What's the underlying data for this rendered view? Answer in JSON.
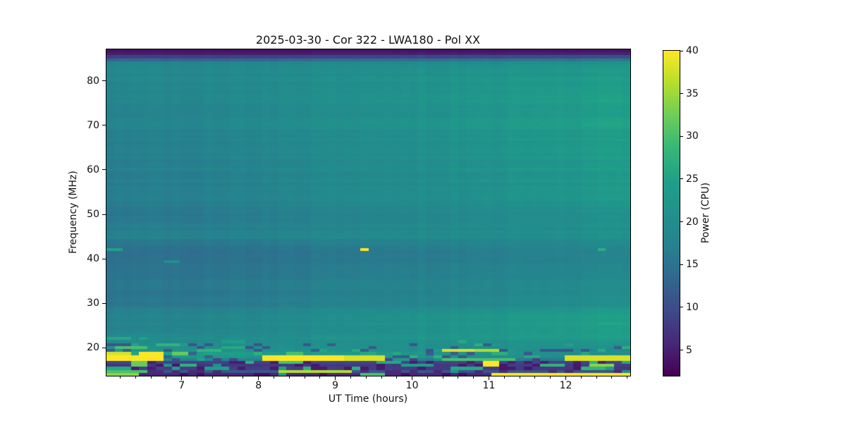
{
  "chart_data": {
    "type": "heatmap",
    "title": "2025-03-30 - Cor 322 - LWA180 - Pol XX",
    "xlabel": "UT Time (hours)",
    "ylabel": "Frequency (MHz)",
    "colorbar_label": "Power (CPU)",
    "x_range": [
      6.02,
      12.84
    ],
    "y_range": [
      13.7,
      87.1
    ],
    "vmin": 2,
    "vmax": 40,
    "x_ticks": [
      7,
      8,
      9,
      10,
      11,
      12
    ],
    "x_minor_step": 0.2,
    "y_ticks": [
      20,
      30,
      40,
      50,
      60,
      70,
      80
    ],
    "colorbar_ticks": [
      5,
      10,
      15,
      20,
      25,
      30,
      35,
      40
    ],
    "colormap_name": "viridis",
    "colormap_stops": [
      [
        0.0,
        "#440154"
      ],
      [
        0.1,
        "#482878"
      ],
      [
        0.2,
        "#3e4a89"
      ],
      [
        0.3,
        "#31688e"
      ],
      [
        0.4,
        "#26828e"
      ],
      [
        0.5,
        "#21918c"
      ],
      [
        0.6,
        "#1fa088"
      ],
      [
        0.7,
        "#35b779"
      ],
      [
        0.8,
        "#6dcd59"
      ],
      [
        0.9,
        "#b4de2c"
      ],
      [
        1.0,
        "#fde725"
      ]
    ],
    "grid": {
      "n_time_bins": 64,
      "n_freq_bins": 110
    },
    "time_gain_exponent": 1.2,
    "background_profile_format": "[freq_MHz, power_at_t_start, power_at_t_end]",
    "background_profile": [
      [
        13.7,
        5.0,
        5.0
      ],
      [
        14.3,
        6.0,
        7.0
      ],
      [
        14.9,
        14.0,
        12.0
      ],
      [
        15.4,
        8.0,
        7.0
      ],
      [
        16.0,
        7.0,
        8.0
      ],
      [
        16.7,
        9.0,
        9.0
      ],
      [
        17.2,
        12.0,
        11.0
      ],
      [
        17.7,
        30.0,
        24.0
      ],
      [
        18.2,
        20.0,
        16.0
      ],
      [
        18.9,
        28.0,
        22.0
      ],
      [
        19.4,
        22.0,
        20.0
      ],
      [
        20.0,
        21.0,
        21.0
      ],
      [
        20.8,
        20.0,
        22.0
      ],
      [
        21.6,
        19.0,
        23.0
      ],
      [
        23.0,
        18.3,
        24.5
      ],
      [
        25.0,
        17.6,
        25.5
      ],
      [
        27.0,
        16.8,
        24.0
      ],
      [
        29.0,
        16.0,
        22.0
      ],
      [
        31.0,
        15.4,
        20.5
      ],
      [
        34.0,
        15.0,
        19.5
      ],
      [
        37.0,
        14.6,
        18.5
      ],
      [
        39.5,
        13.9,
        17.5
      ],
      [
        40.0,
        14.0,
        17.5
      ],
      [
        42.5,
        14.2,
        18.0
      ],
      [
        44.0,
        15.0,
        19.0
      ],
      [
        44.8,
        18.5,
        22.5
      ],
      [
        45.5,
        16.6,
        21.0
      ],
      [
        47.0,
        15.8,
        20.5
      ],
      [
        50.0,
        15.6,
        21.5
      ],
      [
        54.0,
        15.9,
        22.5
      ],
      [
        58.0,
        16.2,
        23.2
      ],
      [
        62.0,
        16.5,
        23.8
      ],
      [
        66.0,
        16.8,
        24.2
      ],
      [
        70.0,
        17.0,
        24.4
      ],
      [
        74.0,
        17.2,
        24.4
      ],
      [
        78.0,
        17.5,
        24.0
      ],
      [
        81.0,
        18.1,
        23.5
      ],
      [
        83.0,
        18.5,
        23.0
      ],
      [
        84.0,
        18.3,
        22.5
      ],
      [
        84.8,
        13.0,
        16.0
      ],
      [
        85.4,
        8.0,
        10.0
      ],
      [
        86.0,
        5.0,
        5.5
      ],
      [
        87.1,
        3.0,
        3.0
      ]
    ],
    "texture": {
      "seed": 20250330,
      "row_noise": 0.045,
      "col_noise": 0.03,
      "bottom_freq_max": 20.8,
      "bottom_dark_prob": 0.2,
      "bottom_dark_factor": 0.55,
      "bottom_bright_prob": 0.07,
      "bottom_bright_min": 20,
      "bottom_bright_max": 28
    },
    "rfi_streaks_format": "[t_start, t_end, freq_MHz, power]",
    "rfi_streaks": [
      [
        6.02,
        6.19,
        42.3,
        25
      ],
      [
        6.76,
        6.98,
        39.6,
        20
      ],
      [
        9.28,
        9.43,
        42.3,
        40
      ],
      [
        12.38,
        12.54,
        42.3,
        27
      ],
      [
        6.02,
        6.35,
        18.9,
        38
      ],
      [
        6.45,
        6.72,
        18.9,
        40
      ],
      [
        6.02,
        6.72,
        17.7,
        40
      ],
      [
        6.9,
        7.1,
        18.9,
        32
      ],
      [
        7.2,
        7.5,
        19.3,
        28
      ],
      [
        6.1,
        6.55,
        20.3,
        30
      ],
      [
        6.65,
        6.95,
        20.6,
        28
      ],
      [
        7.5,
        7.85,
        20.2,
        26
      ],
      [
        8.05,
        9.1,
        17.7,
        40
      ],
      [
        9.15,
        9.62,
        17.7,
        38
      ],
      [
        8.35,
        8.6,
        19.0,
        30
      ],
      [
        9.3,
        9.5,
        18.4,
        26
      ],
      [
        10.35,
        10.78,
        19.1,
        38
      ],
      [
        10.82,
        11.18,
        19.1,
        36
      ],
      [
        10.4,
        11.35,
        17.6,
        30
      ],
      [
        11.5,
        11.72,
        18.2,
        26
      ],
      [
        11.95,
        12.84,
        17.7,
        38
      ],
      [
        6.3,
        6.5,
        16.4,
        32
      ],
      [
        7.02,
        7.18,
        16.1,
        28
      ],
      [
        8.3,
        8.55,
        16.5,
        30
      ],
      [
        9.55,
        9.85,
        16.9,
        26
      ],
      [
        10.9,
        11.12,
        16.4,
        40
      ],
      [
        11.7,
        12.0,
        16.1,
        28
      ],
      [
        12.3,
        12.66,
        16.3,
        34
      ],
      [
        6.02,
        6.5,
        14.9,
        30
      ],
      [
        6.02,
        6.3,
        15.5,
        26
      ],
      [
        7.3,
        7.62,
        15.1,
        24
      ],
      [
        8.6,
        8.85,
        15.0,
        26
      ],
      [
        8.3,
        9.2,
        14.6,
        36
      ],
      [
        9.9,
        10.3,
        15.8,
        24
      ],
      [
        10.5,
        10.92,
        15.2,
        26
      ],
      [
        12.2,
        12.52,
        15.4,
        28
      ],
      [
        11.0,
        12.84,
        14.0,
        40
      ],
      [
        6.02,
        6.4,
        14.3,
        34
      ],
      [
        9.35,
        9.6,
        14.1,
        30
      ],
      [
        6.05,
        6.3,
        21.8,
        26
      ],
      [
        6.4,
        6.6,
        22.3,
        25
      ],
      [
        7.55,
        7.8,
        21.5,
        24
      ],
      [
        10.55,
        10.75,
        21.2,
        26
      ]
    ]
  }
}
